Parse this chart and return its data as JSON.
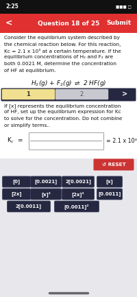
{
  "status_bar_text": "2:25",
  "nav_title": "Question 18 of 25",
  "nav_submit": "Submit",
  "body_text_line1": "Consider the equilibrium system described by",
  "body_text_line2": "the chemical reaction below. For this reaction,",
  "body_text_line3": "Kc = 2.1 x 10³ at a certain temperature. If the",
  "body_text_line4": "equilibrium concentrations of H₂ and F₂ are",
  "body_text_line5": "both 0.0021 M, determine the concentration",
  "body_text_line6": "of HF at equilibrium.",
  "tab1": "1",
  "tab2": "2",
  "inst_line1": "If [x] represents the equilibrium concentration",
  "inst_line2": "of HF, set up the equilibrium expression for Kc",
  "inst_line3": "to solve for the concentration. Do not combine",
  "inst_line4": "or simplify terms..",
  "kc_value_text": "= 2.1 x 10³",
  "reset_label": "RESET",
  "buttons_row1": [
    "[0]",
    "[0.0021]",
    "2[0.0021]",
    "[x]"
  ],
  "buttons_row2": [
    "[2x]",
    "[x]²",
    "[2x]²",
    "[0.0011]"
  ],
  "buttons_row3": [
    "2[0.0011]",
    "[0.0011]²"
  ],
  "bg_color": "#e8e8ec",
  "nav_bg": "#e03030",
  "tab_active_bg": "#f0e090",
  "tab_inactive_bg": "#c8c8d0",
  "tab_dark_bg": "#252840",
  "button_bg": "#252840",
  "button_text_color": "#ffffff",
  "reset_bg": "#cc3333",
  "body_bg": "#ffffff",
  "fraction_box_bg": "#ffffff",
  "fraction_box_border": "#aaaaaa"
}
